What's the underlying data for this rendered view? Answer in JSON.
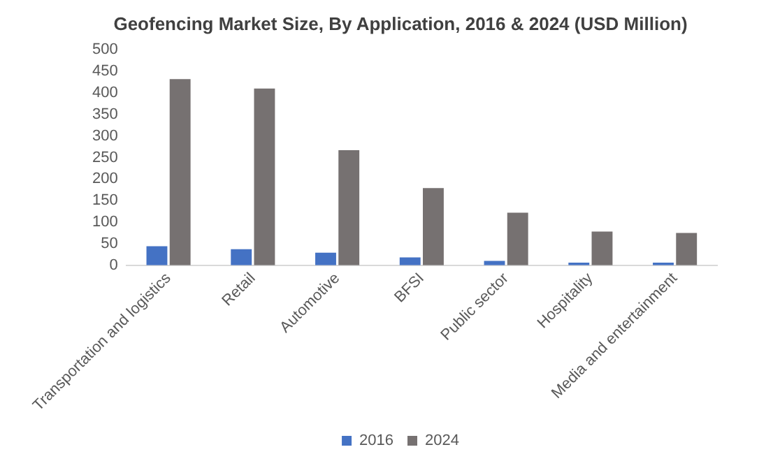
{
  "chart_data": {
    "type": "bar",
    "title": "Geofencing Market Size, By Application, 2016 & 2024 (USD Million)",
    "categories": [
      "Transportation and logistics",
      "Retail",
      "Automotive",
      "BFSI",
      "Public sector",
      "Hospitality",
      "Media and entertainment"
    ],
    "series": [
      {
        "name": "2016",
        "color": "#4472c4",
        "values": [
          44,
          37,
          29,
          18,
          10,
          6,
          6
        ]
      },
      {
        "name": "2024",
        "color": "#767171",
        "values": [
          432,
          410,
          267,
          179,
          122,
          78,
          75
        ]
      }
    ],
    "ylim": [
      0,
      500
    ],
    "yticks": [
      0,
      50,
      100,
      150,
      200,
      250,
      300,
      350,
      400,
      450,
      500
    ],
    "grid": false,
    "legend": "bottom"
  }
}
